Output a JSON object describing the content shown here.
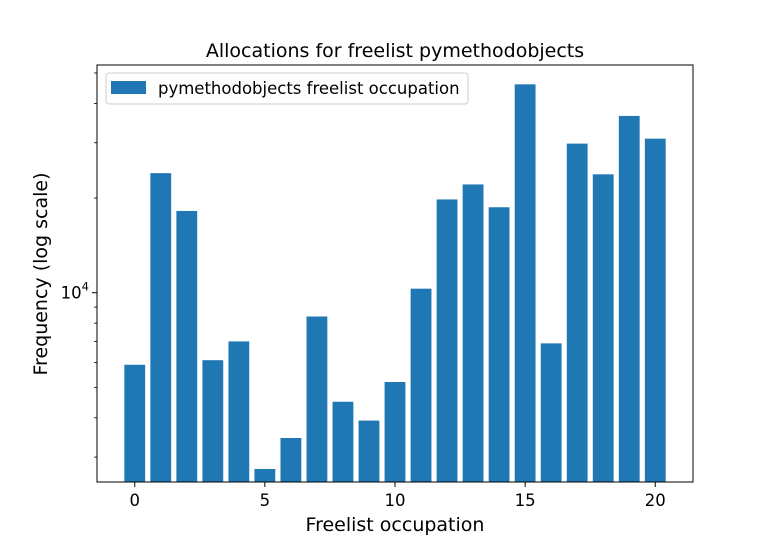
{
  "chart_data": {
    "type": "bar",
    "title": "Allocations for freelist pymethodobjects",
    "xlabel": "Freelist occupation",
    "ylabel": "Frequency (log scale)",
    "y_scale": "log",
    "x": [
      0,
      1,
      2,
      3,
      4,
      5,
      6,
      7,
      8,
      9,
      10,
      11,
      12,
      13,
      14,
      15,
      16,
      17,
      18,
      19,
      20
    ],
    "values": [
      5900,
      24000,
      18200,
      6100,
      7000,
      2750,
      3450,
      8400,
      4500,
      3920,
      5200,
      10300,
      19800,
      22100,
      18700,
      46000,
      6900,
      29800,
      23800,
      36500,
      30900
    ],
    "xlim": [
      -1.45,
      21.45
    ],
    "ylim": [
      2500,
      53000
    ],
    "xticks": [
      0,
      5,
      10,
      15,
      20
    ],
    "yticks": [
      10000
    ],
    "ytick_labels": [
      {
        "base": "10",
        "exponent": "4"
      }
    ],
    "grid": false,
    "legend": {
      "position": "top-left",
      "entries": [
        {
          "label": "pymethodobjects freelist occupation",
          "color": "#1f77b4"
        }
      ]
    },
    "bar_color": "#1f77b4"
  }
}
